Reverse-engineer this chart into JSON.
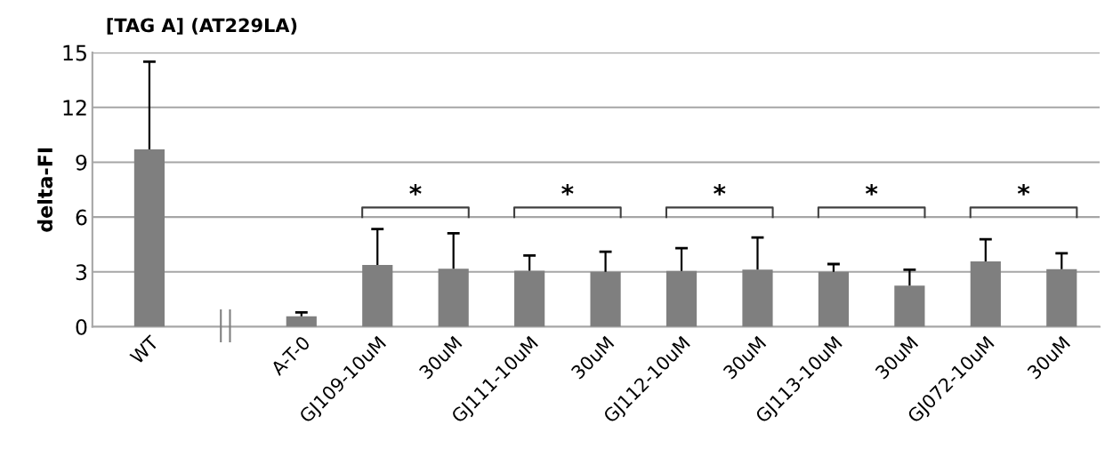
{
  "chart_data": {
    "type": "bar",
    "title": "[TAG A] (AT229LA)",
    "ylabel": "delta-FI",
    "categories": [
      "WT",
      null,
      "A-T-0",
      "GJ109-10uM",
      "30uM",
      "GJ111-10uM",
      "30uM",
      "GJ112-10uM",
      "30uM",
      "GJ113-10uM",
      "30uM",
      "GJ072-10uM",
      "30uM"
    ],
    "values": [
      9.7,
      null,
      0.57,
      3.38,
      3.17,
      3.07,
      3.0,
      3.05,
      3.13,
      3.0,
      2.25,
      3.57,
      3.15
    ],
    "errors": [
      [
        9.7,
        14.5
      ],
      null,
      [
        0.57,
        0.78
      ],
      [
        3.38,
        5.35
      ],
      [
        3.17,
        5.11
      ],
      [
        3.07,
        3.9
      ],
      [
        3.0,
        4.1
      ],
      [
        3.05,
        4.3
      ],
      [
        3.13,
        4.88
      ],
      [
        3.0,
        3.43
      ],
      [
        2.25,
        3.12
      ],
      [
        3.57,
        4.78
      ],
      [
        3.15,
        4.02
      ]
    ],
    "color": "#7f7f7f",
    "ylim": [
      0,
      15
    ],
    "yticks": [
      0,
      3,
      6,
      9,
      12,
      15
    ],
    "grid": "y",
    "annotations": [
      "*",
      "*",
      "*",
      "*",
      "*"
    ]
  }
}
